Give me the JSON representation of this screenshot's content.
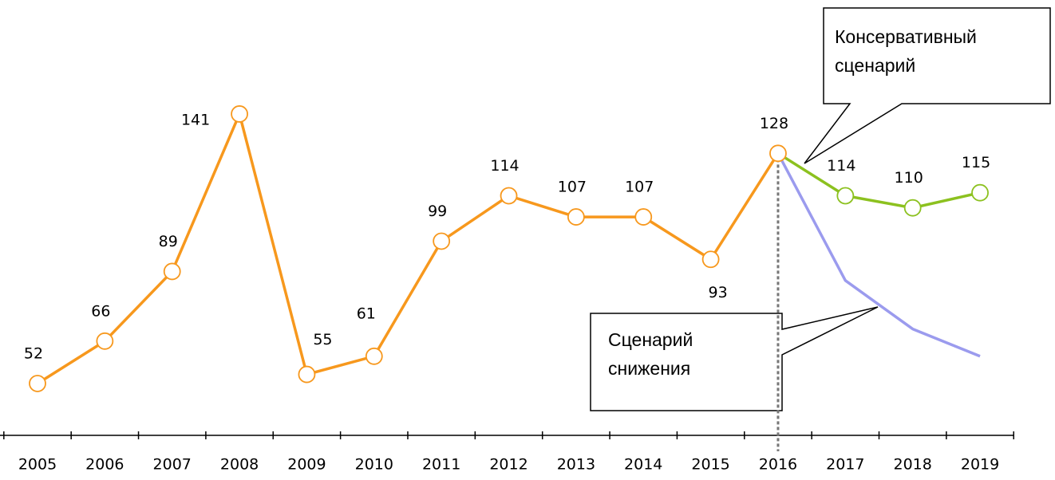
{
  "chart_data": {
    "type": "line",
    "categories": [
      "2005",
      "2006",
      "2007",
      "2008",
      "2009",
      "2010",
      "2011",
      "2012",
      "2013",
      "2014",
      "2015",
      "2016",
      "2017",
      "2018",
      "2019"
    ],
    "series": [
      {
        "name": null,
        "color": "#f7981d",
        "values": [
          52,
          66,
          89,
          141,
          55,
          61,
          99,
          114,
          107,
          107,
          93,
          128,
          null,
          null,
          null
        ]
      },
      {
        "name": "Консервативный сценарий",
        "color": "#8cc11f",
        "values": [
          null,
          null,
          null,
          null,
          null,
          null,
          null,
          null,
          null,
          null,
          null,
          128,
          114,
          110,
          115
        ]
      },
      {
        "name": "Сценарий снижения",
        "color": "#9b9bee",
        "values": [
          null,
          null,
          null,
          null,
          null,
          null,
          null,
          null,
          null,
          null,
          null,
          128,
          86,
          70,
          61
        ]
      }
    ],
    "ylim": [
      20,
      160
    ]
  }
}
